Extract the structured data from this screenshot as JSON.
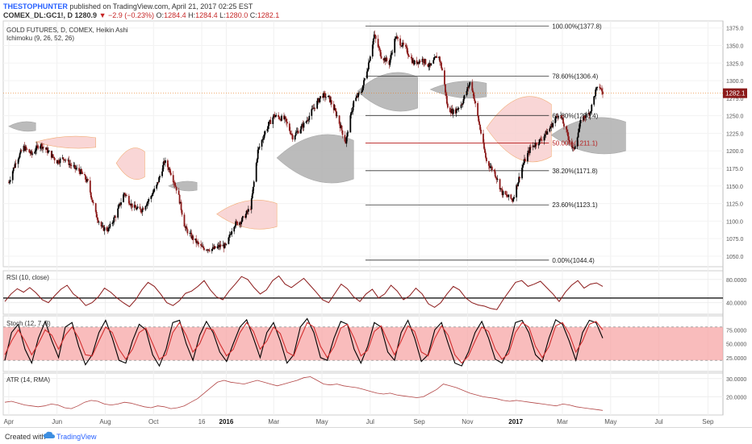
{
  "header": {
    "author": "THESTOPHUNTER",
    "published": "published on TradingView.com, April 21, 2017 02:25 EST",
    "symbol": "COMEX_DL:GC1!, D",
    "close": "1280.9",
    "change": "▼ −2.9 (−0.23%)",
    "open_label": "O:",
    "open": "1284.4",
    "high_label": "H:",
    "high": "1284.4",
    "low_label": "L:",
    "low": "1280.0",
    "close_label": "C:",
    "close_value": "1282.1"
  },
  "footer": {
    "created_with": "Created with",
    "brand": "TradingView"
  },
  "colors": {
    "bull": "#000000",
    "bear": "#8b1a1a",
    "kumo_bull": "#b0b0b0",
    "kumo_bear": "#f8d0d0",
    "rsi": "#8b1a1a",
    "stoch_k": "#000000",
    "stoch_d": "#d32f2f",
    "stoch_band": "#f6a0a0",
    "atr": "#b24545",
    "price_line": "#e67e22"
  },
  "chart_data": [
    {
      "type": "candlestick",
      "title": "GOLD FUTURES, D, COMEX, Heikin Ashi",
      "indicator": "Ichimoku (9, 26, 52, 26)",
      "ylim": [
        1035,
        1385
      ],
      "yticks": [
        1050,
        1075,
        1100,
        1125,
        1150,
        1175,
        1200,
        1225,
        1250,
        1275,
        1300,
        1325,
        1350,
        1375
      ],
      "x_tick_labels": [
        "Apr",
        "Jun",
        "Aug",
        "Oct",
        "16",
        "2016",
        "Mar",
        "May",
        "Jul",
        "Sep",
        "Nov",
        "2017",
        "Mar",
        "May",
        "Jul",
        "Sep"
      ],
      "last_price_label": "1282.1",
      "close_path": [
        [
          "2015-04-01",
          1155
        ],
        [
          "2015-04-10",
          1185
        ],
        [
          "2015-04-20",
          1205
        ],
        [
          "2015-04-30",
          1195
        ],
        [
          "2015-05-10",
          1210
        ],
        [
          "2015-05-20",
          1200
        ],
        [
          "2015-06-01",
          1185
        ],
        [
          "2015-06-10",
          1190
        ],
        [
          "2015-06-20",
          1178
        ],
        [
          "2015-07-01",
          1170
        ],
        [
          "2015-07-10",
          1155
        ],
        [
          "2015-07-20",
          1110
        ],
        [
          "2015-07-28",
          1090
        ],
        [
          "2015-08-05",
          1088
        ],
        [
          "2015-08-15",
          1110
        ],
        [
          "2015-08-25",
          1140
        ],
        [
          "2015-09-05",
          1120
        ],
        [
          "2015-09-15",
          1115
        ],
        [
          "2015-09-25",
          1130
        ],
        [
          "2015-10-05",
          1150
        ],
        [
          "2015-10-15",
          1185
        ],
        [
          "2015-10-22",
          1172
        ],
        [
          "2015-11-01",
          1140
        ],
        [
          "2015-11-10",
          1090
        ],
        [
          "2015-11-20",
          1075
        ],
        [
          "2015-12-01",
          1062
        ],
        [
          "2015-12-15",
          1060
        ],
        [
          "2015-12-25",
          1065
        ],
        [
          "2016-01-01",
          1064
        ],
        [
          "2016-01-10",
          1095
        ],
        [
          "2016-01-20",
          1100
        ],
        [
          "2016-02-01",
          1120
        ],
        [
          "2016-02-10",
          1200
        ],
        [
          "2016-02-20",
          1230
        ],
        [
          "2016-03-01",
          1250
        ],
        [
          "2016-03-15",
          1245
        ],
        [
          "2016-03-25",
          1220
        ],
        [
          "2016-04-10",
          1240
        ],
        [
          "2016-04-20",
          1260
        ],
        [
          "2016-05-01",
          1280
        ],
        [
          "2016-05-10",
          1275
        ],
        [
          "2016-05-20",
          1250
        ],
        [
          "2016-05-31",
          1212
        ],
        [
          "2016-06-10",
          1270
        ],
        [
          "2016-06-20",
          1285
        ],
        [
          "2016-06-28",
          1320
        ],
        [
          "2016-07-06",
          1365
        ],
        [
          "2016-07-15",
          1335
        ],
        [
          "2016-07-25",
          1325
        ],
        [
          "2016-08-02",
          1362
        ],
        [
          "2016-08-15",
          1345
        ],
        [
          "2016-08-25",
          1325
        ],
        [
          "2016-09-05",
          1330
        ],
        [
          "2016-09-15",
          1320
        ],
        [
          "2016-09-25",
          1338
        ],
        [
          "2016-10-01",
          1310
        ],
        [
          "2016-10-07",
          1260
        ],
        [
          "2016-10-15",
          1255
        ],
        [
          "2016-10-25",
          1268
        ],
        [
          "2016-11-05",
          1300
        ],
        [
          "2016-11-12",
          1260
        ],
        [
          "2016-11-25",
          1185
        ],
        [
          "2016-12-05",
          1170
        ],
        [
          "2016-12-15",
          1140
        ],
        [
          "2016-12-28",
          1130
        ],
        [
          "2017-01-10",
          1180
        ],
        [
          "2017-01-20",
          1205
        ],
        [
          "2017-02-01",
          1215
        ],
        [
          "2017-02-12",
          1230
        ],
        [
          "2017-02-25",
          1255
        ],
        [
          "2017-03-05",
          1230
        ],
        [
          "2017-03-15",
          1200
        ],
        [
          "2017-03-25",
          1245
        ],
        [
          "2017-04-05",
          1255
        ],
        [
          "2017-04-12",
          1285
        ],
        [
          "2017-04-17",
          1292
        ],
        [
          "2017-04-21",
          1282
        ]
      ],
      "fibonacci": [
        {
          "label": "100.00%(1377.8)",
          "level": 1377.8
        },
        {
          "label": "78.60%(1306.4)",
          "level": 1306.4
        },
        {
          "label": "61.80%(1250.4)",
          "level": 1250.4
        },
        {
          "label": "50.00%(1211.1)",
          "level": 1211.1
        },
        {
          "label": "38.20%(1171.8)",
          "level": 1171.8
        },
        {
          "label": "23.60%(1123.1)",
          "level": 1123.1
        },
        {
          "label": "0.00%(1044.4)",
          "level": 1044.4
        }
      ],
      "kumo": [
        {
          "from": "2015-04-01",
          "to": "2015-05-05",
          "top": 1245,
          "bottom": 1225,
          "trend": "bull"
        },
        {
          "from": "2015-05-05",
          "to": "2015-07-20",
          "top": 1225,
          "bottom": 1200,
          "trend": "bear"
        },
        {
          "from": "2015-08-15",
          "to": "2015-09-20",
          "top": 1215,
          "bottom": 1150,
          "trend": "bear"
        },
        {
          "from": "2015-10-20",
          "to": "2015-11-25",
          "top": 1160,
          "bottom": 1140,
          "trend": "bull"
        },
        {
          "from": "2015-12-20",
          "to": "2016-03-05",
          "top": 1140,
          "bottom": 1080,
          "trend": "bear"
        },
        {
          "from": "2016-03-05",
          "to": "2016-06-10",
          "top": 1240,
          "bottom": 1140,
          "trend": "bull"
        },
        {
          "from": "2016-06-15",
          "to": "2016-08-30",
          "top": 1325,
          "bottom": 1245,
          "trend": "bull"
        },
        {
          "from": "2016-09-15",
          "to": "2016-11-25",
          "top": 1305,
          "bottom": 1270,
          "trend": "bull"
        },
        {
          "from": "2016-11-25",
          "to": "2017-02-15",
          "top": 1300,
          "bottom": 1165,
          "trend": "bear"
        },
        {
          "from": "2017-02-15",
          "to": "2017-05-20",
          "top": 1260,
          "bottom": 1185,
          "trend": "bull"
        }
      ]
    },
    {
      "type": "line",
      "title": "RSI (10, close)",
      "ylim": [
        20,
        95
      ],
      "yticks": [
        40,
        80
      ],
      "ytick_labels": [
        "40.0000",
        "80.0000"
      ],
      "reference_line": 48,
      "values": [
        42,
        55,
        64,
        58,
        66,
        57,
        45,
        40,
        52,
        63,
        70,
        55,
        47,
        35,
        40,
        50,
        65,
        58,
        48,
        40,
        33,
        45,
        62,
        75,
        68,
        55,
        40,
        35,
        43,
        56,
        60,
        68,
        78,
        62,
        50,
        45,
        60,
        72,
        85,
        80,
        66,
        55,
        62,
        78,
        86,
        72,
        66,
        74,
        82,
        70,
        58,
        45,
        40,
        56,
        72,
        64,
        50,
        42,
        55,
        63,
        48,
        55,
        70,
        60,
        45,
        52,
        65,
        55,
        38,
        32,
        40,
        55,
        68,
        62,
        48,
        40,
        36,
        34,
        30,
        28,
        45,
        60,
        75,
        78,
        68,
        72,
        77,
        66,
        55,
        42,
        58,
        70,
        78,
        65,
        72,
        74,
        68
      ]
    },
    {
      "type": "line",
      "title": "Stoch (12, 7, 3)",
      "ylim": [
        0,
        100
      ],
      "yticks": [
        25,
        50,
        75
      ],
      "ytick_labels": [
        "25.0000",
        "50.0000",
        "75.0000"
      ],
      "band": [
        20,
        80
      ],
      "series": [
        {
          "name": "%K",
          "values": [
            20,
            70,
            85,
            40,
            15,
            60,
            90,
            55,
            25,
            80,
            88,
            45,
            12,
            30,
            70,
            92,
            60,
            20,
            15,
            55,
            85,
            75,
            30,
            10,
            40,
            88,
            92,
            50,
            20,
            65,
            90,
            70,
            35,
            18,
            50,
            80,
            93,
            60,
            25,
            70,
            88,
            55,
            15,
            30,
            80,
            95,
            70,
            25,
            20,
            60,
            90,
            85,
            40,
            15,
            45,
            88,
            80,
            35,
            20,
            70,
            92,
            60,
            18,
            30,
            75,
            88,
            50,
            15,
            10,
            35,
            70,
            90,
            60,
            22,
            15,
            40,
            88,
            92,
            70,
            30,
            18,
            60,
            93,
            85,
            55,
            20,
            70,
            92,
            88,
            60
          ]
        },
        {
          "name": "%D",
          "values": [
            30,
            55,
            75,
            55,
            30,
            50,
            75,
            65,
            40,
            65,
            80,
            60,
            30,
            28,
            55,
            80,
            70,
            40,
            22,
            40,
            70,
            78,
            50,
            22,
            30,
            70,
            88,
            65,
            35,
            50,
            78,
            75,
            50,
            28,
            40,
            70,
            88,
            72,
            40,
            55,
            80,
            68,
            35,
            28,
            60,
            88,
            80,
            45,
            25,
            45,
            78,
            85,
            60,
            28,
            38,
            72,
            82,
            55,
            30,
            55,
            82,
            72,
            35,
            28,
            60,
            82,
            65,
            30,
            15,
            28,
            55,
            80,
            72,
            40,
            22,
            32,
            70,
            88,
            80,
            45,
            25,
            45,
            82,
            88,
            68,
            35,
            55,
            85,
            90,
            75
          ]
        }
      ]
    },
    {
      "type": "line",
      "title": "ATR (14, RMA)",
      "ylim": [
        10,
        33
      ],
      "yticks": [
        20,
        30
      ],
      "ytick_labels": [
        "20.0000",
        "30.0000"
      ],
      "values": [
        17,
        17.5,
        16.5,
        15.5,
        15,
        14.5,
        15,
        16,
        15.5,
        14,
        13.5,
        15,
        17,
        18,
        17.5,
        16,
        15.5,
        16,
        17,
        16.5,
        15.5,
        14.5,
        14,
        15,
        14.5,
        13.5,
        14,
        15,
        17,
        19,
        22,
        25,
        28,
        29,
        28,
        27.5,
        27,
        28,
        29,
        28,
        27,
        26,
        27,
        28,
        29,
        30.5,
        31,
        29,
        27,
        26.5,
        27,
        26,
        25.5,
        25,
        24,
        23,
        22,
        21.5,
        22,
        21,
        20.5,
        20,
        19.5,
        20,
        22,
        24,
        27,
        26,
        25,
        23.5,
        22,
        21,
        20,
        19.5,
        19,
        18,
        17.5,
        18,
        17.5,
        17,
        16.5,
        16,
        15.5,
        15,
        16,
        15.5,
        14.5,
        14,
        13.5,
        13,
        12.5
      ]
    }
  ]
}
